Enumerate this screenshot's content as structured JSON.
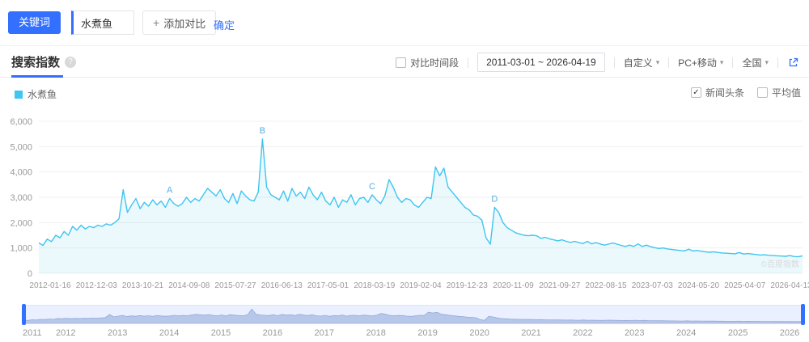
{
  "toolbar": {
    "keyword_label": "关键词",
    "keyword_value": "水煮鱼",
    "add_compare_label": "添加对比",
    "confirm_label": "确定"
  },
  "tabs": {
    "search_index_label": "搜索指数"
  },
  "filters": {
    "compare_period_label": "对比时间段",
    "date_range": "2011-03-01 ~ 2026-04-19",
    "custom_label": "自定义",
    "device_label": "PC+移动",
    "region_label": "全国"
  },
  "legend": {
    "series_label": "水煮鱼",
    "news_label": "新闻头条",
    "news_checked": true,
    "average_label": "平均值",
    "average_checked": false
  },
  "icons": {
    "plus": "+",
    "question": "?",
    "caret_down": "▾",
    "check": "✓"
  },
  "watermark": "©百度指数",
  "colors": {
    "accent": "#3370ff",
    "line": "#3ec5f0",
    "area": "rgba(62,197,240,0.10)",
    "annotation": "#58ade0",
    "grid": "#f0f0f0",
    "axis_text": "#999999",
    "mini_fill": "#c7d2e8",
    "mini_stroke": "#9fb1d4",
    "overlay": "rgba(51,112,255,0.10)"
  },
  "chart_data": {
    "type": "line",
    "series_name": "水煮鱼",
    "start_month": "2011-03",
    "ylim": [
      0,
      6000
    ],
    "y_ticks": [
      "0",
      "1,000",
      "2,000",
      "3,000",
      "4,000",
      "5,000",
      "6,000"
    ],
    "x_tick_labels": [
      "2012-01-16",
      "2012-12-03",
      "2013-10-21",
      "2014-09-08",
      "2015-07-27",
      "2016-06-13",
      "2017-05-01",
      "2018-03-19",
      "2019-02-04",
      "2019-12-23",
      "2020-11-09",
      "2021-09-27",
      "2022-08-15",
      "2023-07-03",
      "2024-05-20",
      "2025-04-07",
      "2026-04-13"
    ],
    "values": [
      1200,
      1100,
      1350,
      1250,
      1500,
      1400,
      1650,
      1500,
      1850,
      1700,
      1900,
      1750,
      1850,
      1800,
      1900,
      1850,
      1950,
      1900,
      2000,
      2150,
      3300,
      2400,
      2700,
      2950,
      2550,
      2800,
      2650,
      2900,
      2700,
      2850,
      2600,
      2950,
      2750,
      2650,
      2750,
      3000,
      2800,
      2950,
      2850,
      3100,
      3350,
      3200,
      3050,
      3300,
      2950,
      2800,
      3150,
      2750,
      3250,
      3050,
      2900,
      2850,
      3200,
      5300,
      3400,
      3100,
      3000,
      2900,
      3250,
      2850,
      3350,
      3050,
      3200,
      2950,
      3400,
      3100,
      2900,
      3200,
      2850,
      2700,
      3000,
      2600,
      2900,
      2800,
      3100,
      2700,
      2950,
      3000,
      2800,
      3100,
      2900,
      2750,
      3050,
      3700,
      3400,
      3000,
      2800,
      2950,
      2900,
      2700,
      2600,
      2800,
      3000,
      2950,
      4200,
      3850,
      4150,
      3400,
      3200,
      3000,
      2800,
      2600,
      2500,
      2300,
      2250,
      2100,
      1400,
      1150,
      2600,
      2400,
      2000,
      1800,
      1700,
      1600,
      1550,
      1500,
      1480,
      1500,
      1480,
      1380,
      1420,
      1360,
      1320,
      1280,
      1320,
      1260,
      1220,
      1260,
      1210,
      1170,
      1260,
      1160,
      1210,
      1160,
      1110,
      1150,
      1200,
      1150,
      1100,
      1060,
      1110,
      1060,
      1160,
      1060,
      1110,
      1050,
      1010,
      980,
      1000,
      960,
      940,
      920,
      900,
      880,
      950,
      880,
      900,
      870,
      850,
      830,
      850,
      820,
      800,
      790,
      780,
      770,
      820,
      760,
      780,
      760,
      740,
      720,
      730,
      710,
      700,
      690,
      680,
      670,
      700,
      660,
      650,
      690
    ],
    "annotations": [
      {
        "label": "A",
        "index": 31,
        "value": 2950
      },
      {
        "label": "B",
        "index": 53,
        "value": 5300
      },
      {
        "label": "C",
        "index": 79,
        "value": 3100
      },
      {
        "label": "D",
        "index": 108,
        "value": 2600
      }
    ]
  },
  "scrubber": {
    "years": [
      "2011",
      "2012",
      "2013",
      "2014",
      "2015",
      "2016",
      "2017",
      "2018",
      "2019",
      "2020",
      "2021",
      "2022",
      "2023",
      "2024",
      "2025",
      "2026"
    ]
  }
}
